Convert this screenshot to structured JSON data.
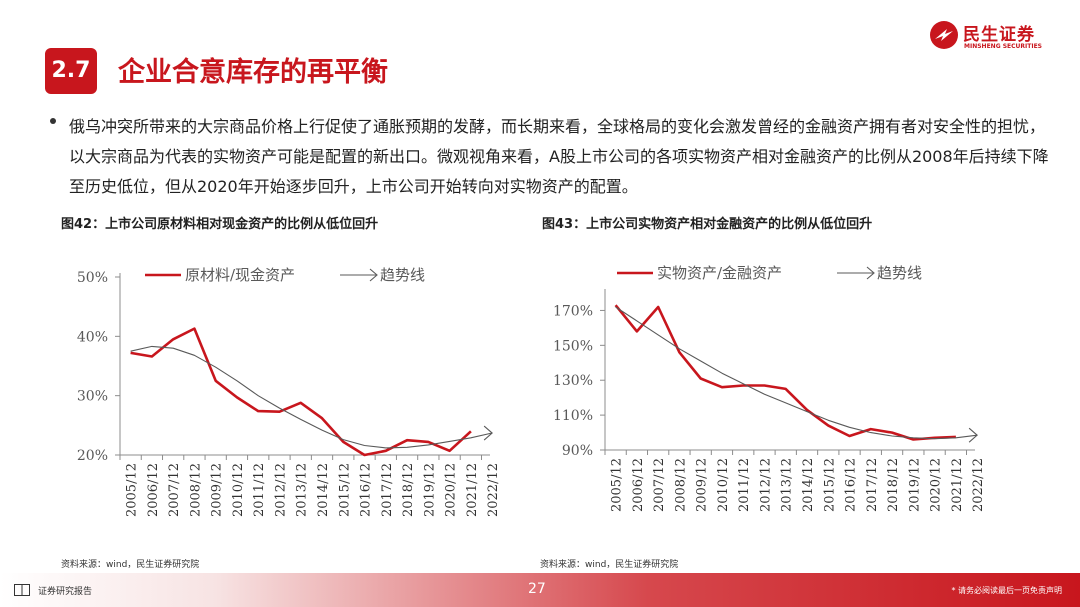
{
  "brand": {
    "name_cn": "民生证券",
    "name_en": "MINSHENG SECURITIES"
  },
  "section": {
    "number": "2.7",
    "title": "企业合意库存的再平衡"
  },
  "bullet_text": "俄乌冲突所带来的大宗商品价格上行促使了通胀预期的发酵，而长期来看，全球格局的变化会激发曾经的金融资产拥有者对安全性的担忧，以大宗商品为代表的实物资产可能是配置的新出口。微观视角来看，A股上市公司的各项实物资产相对金融资产的比例从2008年后持续下降至历史低位，但从2020年开始逐步回升，上市公司开始转向对实物资产的配置。",
  "figures": [
    {
      "title": "图42：上市公司原材料相对现金资产的比例从低位回升",
      "source": "资料来源：wind，民生证券研究院"
    },
    {
      "title": "图43：上市公司实物资产相对金融资产的比例从低位回升",
      "source": "资料来源：wind，民生证券研究院"
    }
  ],
  "footer": {
    "left_label": "证券研究报告",
    "page": "27",
    "disclaimer": "* 请务必阅读最后一页免责声明"
  },
  "colors": {
    "brand_red": "#c8161d",
    "series_red": "#c8161d",
    "trend_gray": "#595959"
  },
  "chart_data": [
    {
      "type": "line",
      "categories": [
        "2005/12",
        "2006/12",
        "2007/12",
        "2008/12",
        "2009/12",
        "2010/12",
        "2011/12",
        "2012/12",
        "2013/12",
        "2014/12",
        "2015/12",
        "2016/12",
        "2017/12",
        "2018/12",
        "2019/12",
        "2020/12",
        "2021/12",
        "2022/12"
      ],
      "series": [
        {
          "name": "原材料/现金资产",
          "values": [
            0.372,
            0.366,
            0.395,
            0.413,
            0.325,
            0.297,
            0.274,
            0.273,
            0.288,
            0.262,
            0.222,
            0.2,
            0.207,
            0.225,
            0.222,
            0.207,
            0.24,
            null
          ]
        },
        {
          "name": "趋势线",
          "values": [
            0.375,
            0.383,
            0.38,
            0.368,
            0.348,
            0.325,
            0.3,
            0.279,
            0.26,
            0.242,
            0.226,
            0.216,
            0.212,
            0.213,
            0.217,
            0.223,
            0.229,
            0.237
          ]
        }
      ],
      "yticks": [
        "50%",
        "40%",
        "30%",
        "20%"
      ],
      "ylim": [
        0.2,
        0.5
      ],
      "grid": false,
      "legend": "top"
    },
    {
      "type": "line",
      "categories": [
        "2005/12",
        "2006/12",
        "2007/12",
        "2008/12",
        "2009/12",
        "2010/12",
        "2011/12",
        "2012/12",
        "2013/12",
        "2014/12",
        "2015/12",
        "2016/12",
        "2017/12",
        "2018/12",
        "2019/12",
        "2020/12",
        "2021/12",
        "2022/12"
      ],
      "series": [
        {
          "name": "实物资产/金融资产",
          "values": [
            1.73,
            1.58,
            1.72,
            1.46,
            1.31,
            1.26,
            1.27,
            1.27,
            1.25,
            1.13,
            1.04,
            0.98,
            1.02,
            1.0,
            0.96,
            0.97,
            0.975,
            null
          ]
        },
        {
          "name": "趋势线",
          "values": [
            1.72,
            1.64,
            1.56,
            1.48,
            1.41,
            1.34,
            1.28,
            1.22,
            1.17,
            1.12,
            1.07,
            1.03,
            1.0,
            0.98,
            0.97,
            0.965,
            0.97,
            0.985
          ]
        }
      ],
      "yticks": [
        "170%",
        "150%",
        "130%",
        "110%",
        "90%"
      ],
      "ylim": [
        0.9,
        1.8
      ],
      "grid": false,
      "legend": "top"
    }
  ]
}
